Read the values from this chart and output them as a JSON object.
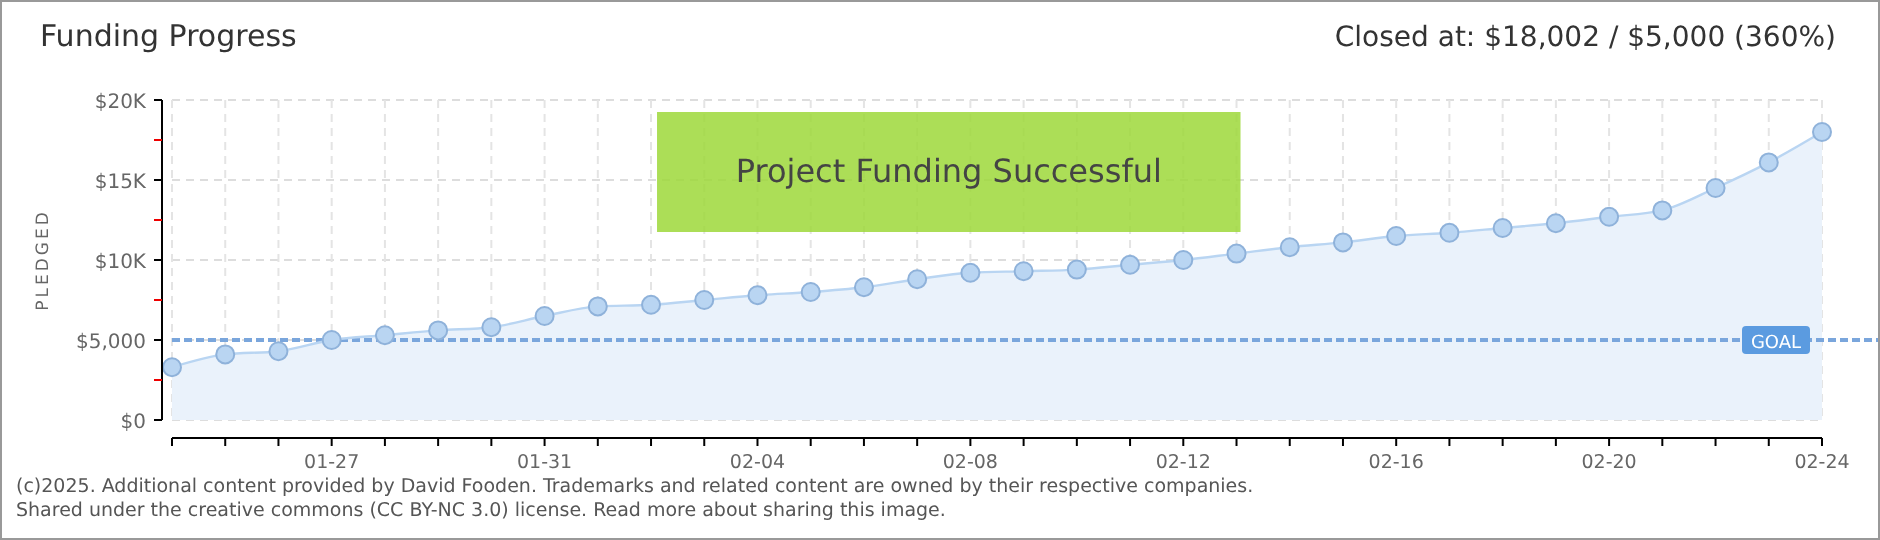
{
  "chart_data": {
    "type": "area",
    "title": "Funding Progress",
    "subtitle": "Closed at: $18,002 / $5,000 (360%)",
    "ylabel": "PLEDGED",
    "x": [
      "--01-24",
      "--01-25",
      "--01-26",
      "--01-27",
      "--01-28",
      "--01-29",
      "--01-30",
      "--01-31",
      "--02-01",
      "--02-02",
      "--02-03",
      "--02-04",
      "--02-05",
      "--02-06",
      "--02-07",
      "--02-08",
      "--02-09",
      "--02-10",
      "--02-11",
      "--02-12",
      "--02-13",
      "--02-14",
      "--02-15",
      "--02-16",
      "--02-17",
      "--02-18",
      "--02-19",
      "--02-20",
      "--02-21",
      "--02-22",
      "--02-23",
      "--02-24"
    ],
    "series": [
      {
        "color": "#b9d5f2",
        "values": [
          3300,
          4100,
          4300,
          5000,
          5300,
          5600,
          5800,
          6500,
          7100,
          7200,
          7500,
          7800,
          8000,
          8300,
          8800,
          9200,
          9300,
          9400,
          9700,
          10000,
          10400,
          10800,
          11100,
          11500,
          11700,
          12000,
          12300,
          12700,
          13100,
          14500,
          16100,
          18000
        ]
      }
    ],
    "xlim": [
      "--01-24",
      "--02-24"
    ],
    "xticks": [
      {
        "value": "--01-24",
        "label": null
      },
      {
        "value": "--01-25",
        "label": null
      },
      {
        "value": "--01-26",
        "label": null
      },
      {
        "value": "--01-27",
        "label": "01-27"
      },
      {
        "value": "--01-28",
        "label": null
      },
      {
        "value": "--01-29",
        "label": null
      },
      {
        "value": "--01-30",
        "label": null
      },
      {
        "value": "--01-31",
        "label": "01-31"
      },
      {
        "value": "--02-01",
        "label": null
      },
      {
        "value": "--02-02",
        "label": null
      },
      {
        "value": "--02-03",
        "label": null
      },
      {
        "value": "--02-04",
        "label": "02-04"
      },
      {
        "value": "--02-05",
        "label": null
      },
      {
        "value": "--02-06",
        "label": null
      },
      {
        "value": "--02-07",
        "label": null
      },
      {
        "value": "--02-08",
        "label": "02-08"
      },
      {
        "value": "--02-09",
        "label": null
      },
      {
        "value": "--02-10",
        "label": null
      },
      {
        "value": "--02-11",
        "label": null
      },
      {
        "value": "--02-12",
        "label": "02-12"
      },
      {
        "value": "--02-13",
        "label": null
      },
      {
        "value": "--02-14",
        "label": null
      },
      {
        "value": "--02-15",
        "label": null
      },
      {
        "value": "--02-16",
        "label": "02-16"
      },
      {
        "value": "--02-17",
        "label": null
      },
      {
        "value": "--02-18",
        "label": null
      },
      {
        "value": "--02-19",
        "label": null
      },
      {
        "value": "--02-20",
        "label": "02-20"
      },
      {
        "value": "--02-21",
        "label": null
      },
      {
        "value": "--02-22",
        "label": null
      },
      {
        "value": "--02-23",
        "label": null
      },
      {
        "value": "--02-24",
        "label": "02-24"
      }
    ],
    "ylim": [
      0,
      20000
    ],
    "yticks": [
      {
        "value": 0,
        "label": "$0"
      },
      {
        "value": 2500,
        "label": null
      },
      {
        "value": 5000,
        "label": "$5,000"
      },
      {
        "value": 7500,
        "label": null
      },
      {
        "value": 10000,
        "label": "$10K"
      },
      {
        "value": 12500,
        "label": null
      },
      {
        "value": 15000,
        "label": "$15K"
      },
      {
        "value": 17500,
        "label": null
      },
      {
        "value": 20000,
        "label": "$20K"
      }
    ],
    "grid": true,
    "marker": "circle",
    "ref_lines": [
      {
        "axis": "y",
        "value": 5000,
        "label": "GOAL",
        "color": "#7aa6dc",
        "line_style": "dashed"
      }
    ],
    "annotations": [
      "Project Funding Successful",
      "(c)2025. Additional content provided by David Fooden. Trademarks and related content are owned by their respective companies.",
      "Shared under the creative commons (CC BY-NC 3.0) license. Read more about sharing this image."
    ]
  }
}
